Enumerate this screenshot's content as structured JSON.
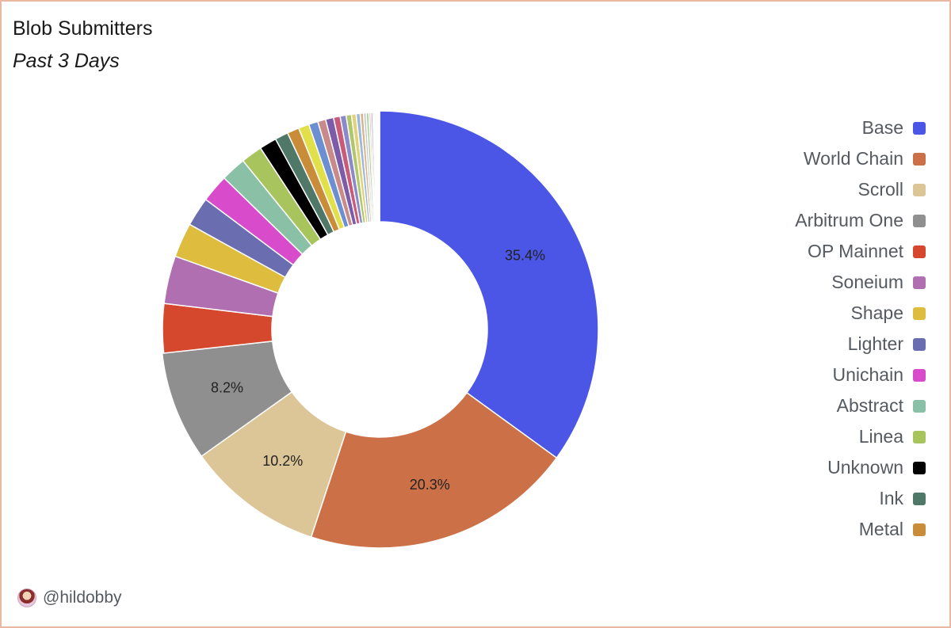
{
  "title": "Blob Submitters",
  "subtitle": "Past 3 Days",
  "footer": {
    "handle": "@hildobby",
    "avatar_icon": "user-avatar-icon"
  },
  "chart_data": {
    "type": "pie",
    "donut": true,
    "title": "Blob Submitters",
    "subtitle": "Past 3 Days",
    "legend_position": "right",
    "slices": [
      {
        "name": "Base",
        "value": 35.4,
        "color": "#4b55e6",
        "label": "35.4%"
      },
      {
        "name": "World Chain",
        "value": 20.3,
        "color": "#cc7048",
        "label": "20.3%"
      },
      {
        "name": "Scroll",
        "value": 10.2,
        "color": "#dcc597",
        "label": "10.2%"
      },
      {
        "name": "Arbitrum One",
        "value": 8.2,
        "color": "#8f8f8f",
        "label": "8.2%"
      },
      {
        "name": "OP Mainnet",
        "value": 3.7,
        "color": "#d6482d",
        "label": ""
      },
      {
        "name": "Soneium",
        "value": 3.6,
        "color": "#b06fb0",
        "label": ""
      },
      {
        "name": "Shape",
        "value": 2.6,
        "color": "#ddbc3e",
        "label": ""
      },
      {
        "name": "Lighter",
        "value": 2.2,
        "color": "#6a6db0",
        "label": ""
      },
      {
        "name": "Unichain",
        "value": 2.1,
        "color": "#d84ccc",
        "label": ""
      },
      {
        "name": "Abstract",
        "value": 1.9,
        "color": "#89c0a6",
        "label": ""
      },
      {
        "name": "Linea",
        "value": 1.6,
        "color": "#a7c55c",
        "label": ""
      },
      {
        "name": "Unknown",
        "value": 1.3,
        "color": "#000000",
        "label": ""
      },
      {
        "name": "Ink",
        "value": 1.0,
        "color": "#4f7868",
        "label": ""
      },
      {
        "name": "Metal",
        "value": 0.9,
        "color": "#c98d3a",
        "label": ""
      },
      {
        "name": "",
        "value": 0.8,
        "color": "#e2e04a",
        "label": ""
      },
      {
        "name": "",
        "value": 0.7,
        "color": "#6b8fd0",
        "label": ""
      },
      {
        "name": "",
        "value": 0.6,
        "color": "#c98a8a",
        "label": ""
      },
      {
        "name": "",
        "value": 0.6,
        "color": "#7c5ba8",
        "label": ""
      },
      {
        "name": "",
        "value": 0.5,
        "color": "#c85a7a",
        "label": ""
      },
      {
        "name": "",
        "value": 0.45,
        "color": "#8a8ac8",
        "label": ""
      },
      {
        "name": "",
        "value": 0.4,
        "color": "#b0c66a",
        "label": ""
      },
      {
        "name": "",
        "value": 0.35,
        "color": "#e0d27a",
        "label": ""
      },
      {
        "name": "",
        "value": 0.3,
        "color": "#9ab8d8",
        "label": ""
      },
      {
        "name": "",
        "value": 0.25,
        "color": "#d8b28a",
        "label": ""
      },
      {
        "name": "",
        "value": 0.2,
        "color": "#c8c8c8",
        "label": ""
      },
      {
        "name": "",
        "value": 0.2,
        "color": "#a6d0a0",
        "label": ""
      },
      {
        "name": "",
        "value": 0.15,
        "color": "#e8c8a0",
        "label": ""
      },
      {
        "name": "",
        "value": 0.15,
        "color": "#b8a8d8",
        "label": ""
      },
      {
        "name": "",
        "value": 0.1,
        "color": "#d0d0a0",
        "label": ""
      },
      {
        "name": "",
        "value": 0.1,
        "color": "#e0b8c8",
        "label": ""
      },
      {
        "name": "",
        "value": 0.1,
        "color": "#f0e0c0",
        "label": ""
      },
      {
        "name": "",
        "value": 0.1,
        "color": "#d8e8d8",
        "label": ""
      },
      {
        "name": "",
        "value": 0.1,
        "color": "#e8e0d0",
        "label": ""
      }
    ]
  }
}
